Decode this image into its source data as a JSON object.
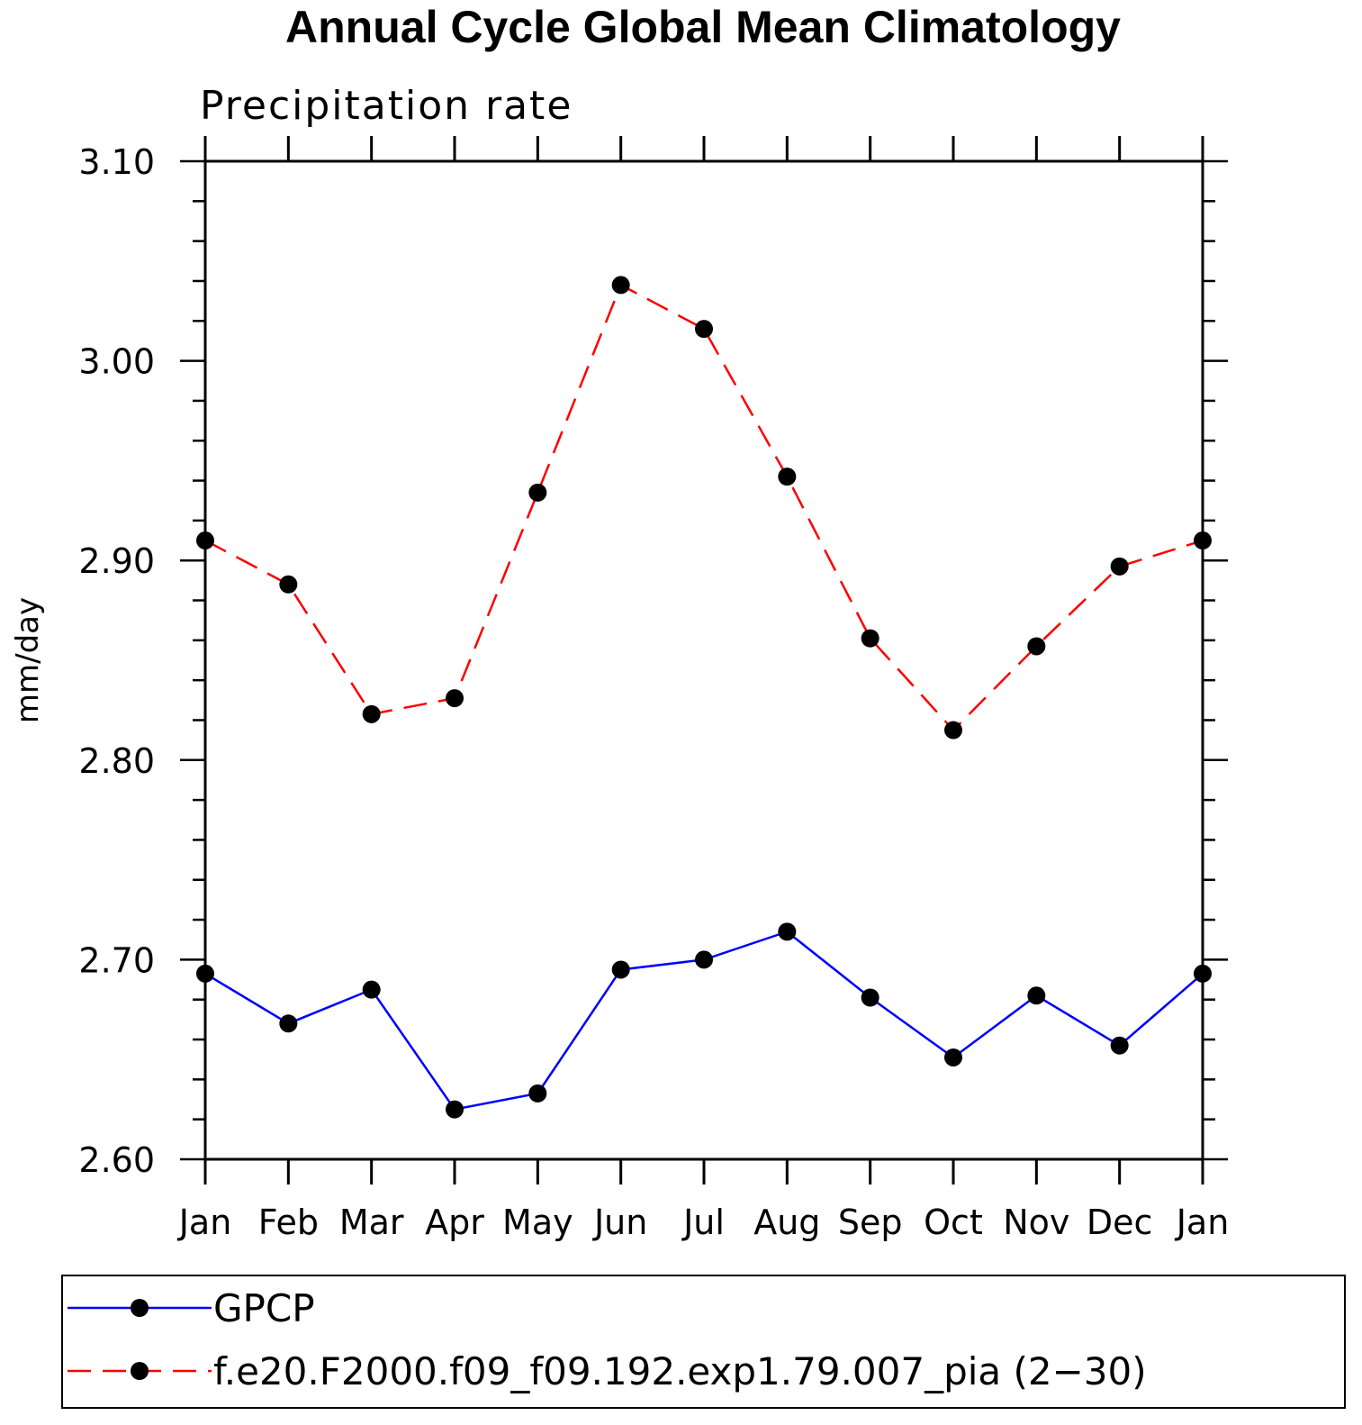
{
  "chart_data": {
    "type": "line",
    "title": "Annual Cycle Global Mean Climatology",
    "subtitle": "Precipitation rate",
    "ylabel": "mm/day",
    "xlabel": "",
    "categories": [
      "Jan",
      "Feb",
      "Mar",
      "Apr",
      "May",
      "Jun",
      "Jul",
      "Aug",
      "Sep",
      "Oct",
      "Nov",
      "Dec",
      "Jan"
    ],
    "ylim": [
      2.6,
      3.1
    ],
    "yticks": [
      "2.60",
      "2.70",
      "2.80",
      "2.90",
      "3.00",
      "3.10"
    ],
    "grid": false,
    "legend_position": "bottom",
    "series": [
      {
        "name": "GPCP",
        "color": "#0000ff",
        "style": "solid",
        "marker": "filled-circle",
        "values": [
          2.693,
          2.668,
          2.685,
          2.625,
          2.633,
          2.695,
          2.7,
          2.714,
          2.681,
          2.651,
          2.682,
          2.657,
          2.693
        ]
      },
      {
        "name": "f.e20.F2000.f09_f09.192.exp1.79.007_pia (2−30)",
        "color": "#ff0000",
        "style": "dashed",
        "marker": "filled-circle",
        "values": [
          2.91,
          2.888,
          2.823,
          2.831,
          2.934,
          3.038,
          3.016,
          2.942,
          2.861,
          2.815,
          2.857,
          2.897,
          2.91
        ]
      }
    ]
  }
}
